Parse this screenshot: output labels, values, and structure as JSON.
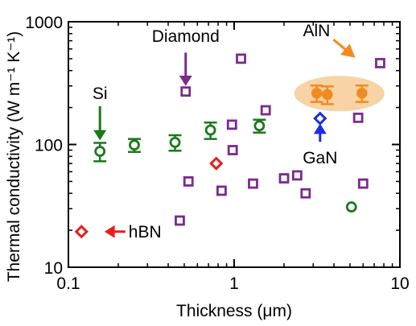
{
  "chart_data": {
    "type": "scatter",
    "xscale": "log",
    "yscale": "log",
    "xlabel": "Thickness (μm)",
    "ylabel": "Thermal conductivity (W m⁻¹ K⁻¹)",
    "xlim": [
      0.1,
      10
    ],
    "ylim": [
      10,
      1000
    ],
    "xticks": [
      {
        "value": 0.1,
        "label": "0.1"
      },
      {
        "value": 1,
        "label": "1"
      },
      {
        "value": 10,
        "label": "10"
      }
    ],
    "yticks": [
      {
        "value": 10,
        "label": "10"
      },
      {
        "value": 100,
        "label": "100"
      },
      {
        "value": 1000,
        "label": "1000"
      }
    ],
    "series": [
      {
        "name": "Si",
        "color": "#1a7a1a",
        "marker": "circle-open",
        "points": [
          {
            "x": 0.155,
            "y": 88,
            "err": 15
          },
          {
            "x": 0.25,
            "y": 99,
            "err": 12
          },
          {
            "x": 0.44,
            "y": 104,
            "err": 15
          },
          {
            "x": 0.72,
            "y": 131,
            "err": 20
          },
          {
            "x": 1.42,
            "y": 142,
            "err": 17
          },
          {
            "x": 5.1,
            "y": 31,
            "err": 0
          }
        ]
      },
      {
        "name": "Diamond",
        "color": "#7b2a8e",
        "marker": "square-open",
        "points": [
          {
            "x": 0.47,
            "y": 24
          },
          {
            "x": 0.51,
            "y": 270
          },
          {
            "x": 0.53,
            "y": 50
          },
          {
            "x": 0.84,
            "y": 42
          },
          {
            "x": 0.97,
            "y": 145
          },
          {
            "x": 0.98,
            "y": 90
          },
          {
            "x": 1.1,
            "y": 500
          },
          {
            "x": 1.3,
            "y": 48
          },
          {
            "x": 1.55,
            "y": 190
          },
          {
            "x": 2.0,
            "y": 53
          },
          {
            "x": 2.4,
            "y": 56
          },
          {
            "x": 2.7,
            "y": 40
          },
          {
            "x": 5.6,
            "y": 165
          },
          {
            "x": 6.0,
            "y": 48
          },
          {
            "x": 7.6,
            "y": 460
          }
        ]
      },
      {
        "name": "AlN",
        "color": "#f08c1e",
        "marker": "circle-filled",
        "points": [
          {
            "x": 3.15,
            "y": 262,
            "err": 40
          },
          {
            "x": 3.65,
            "y": 255,
            "err": 42
          },
          {
            "x": 5.9,
            "y": 262,
            "err": 40
          }
        ]
      },
      {
        "name": "GaN",
        "color": "#1a2ee6",
        "marker": "diamond-open",
        "points": [
          {
            "x": 3.3,
            "y": 163
          }
        ]
      },
      {
        "name": "hBN",
        "color": "#e81e1e",
        "marker": "diamond-open",
        "points": [
          {
            "x": 0.12,
            "y": 19.5
          },
          {
            "x": 0.78,
            "y": 70
          }
        ]
      }
    ],
    "annotations": [
      {
        "text": "Si",
        "color": "#1a7a1a",
        "x": 0.155,
        "y_tail": 205,
        "y_head": 108,
        "text_y": 260
      },
      {
        "text": "Diamond",
        "color": "#7b2a8e",
        "x": 0.51,
        "y_tail": 560,
        "y_head": 300,
        "text_y": 760
      },
      {
        "text": "GaN",
        "color": "#1a2ee6",
        "x": 3.3,
        "y_tail": 105,
        "y_head": 148,
        "text_y": 78
      },
      {
        "text": "hBN",
        "color": "#e81e1e",
        "x": 0.16,
        "y": 19.5,
        "text_x": 0.165
      },
      {
        "text": "AlN",
        "color": "#f08c1e",
        "x": 2.6,
        "y": 760
      }
    ],
    "highlight_ellipse": {
      "label": "AlN",
      "fill": "#f7d3a6"
    }
  }
}
